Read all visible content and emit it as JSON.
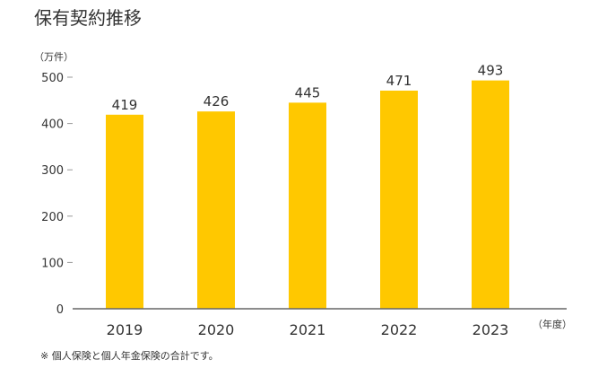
{
  "chart_data": {
    "type": "bar",
    "title": "保有契約推移",
    "ylabel": "（万件）",
    "xlabel": "（年度）",
    "categories": [
      "2019",
      "2020",
      "2021",
      "2022",
      "2023"
    ],
    "values": [
      419,
      426,
      445,
      471,
      493
    ],
    "data_labels": [
      "419",
      "426",
      "445",
      "471",
      "493"
    ],
    "y_ticks": [
      0,
      100,
      200,
      300,
      400,
      500
    ],
    "ylim": [
      0,
      500
    ],
    "grid": false,
    "bar_color": "#FFC800",
    "note": "※ 個人保険と個人年金保険の合計です。"
  }
}
